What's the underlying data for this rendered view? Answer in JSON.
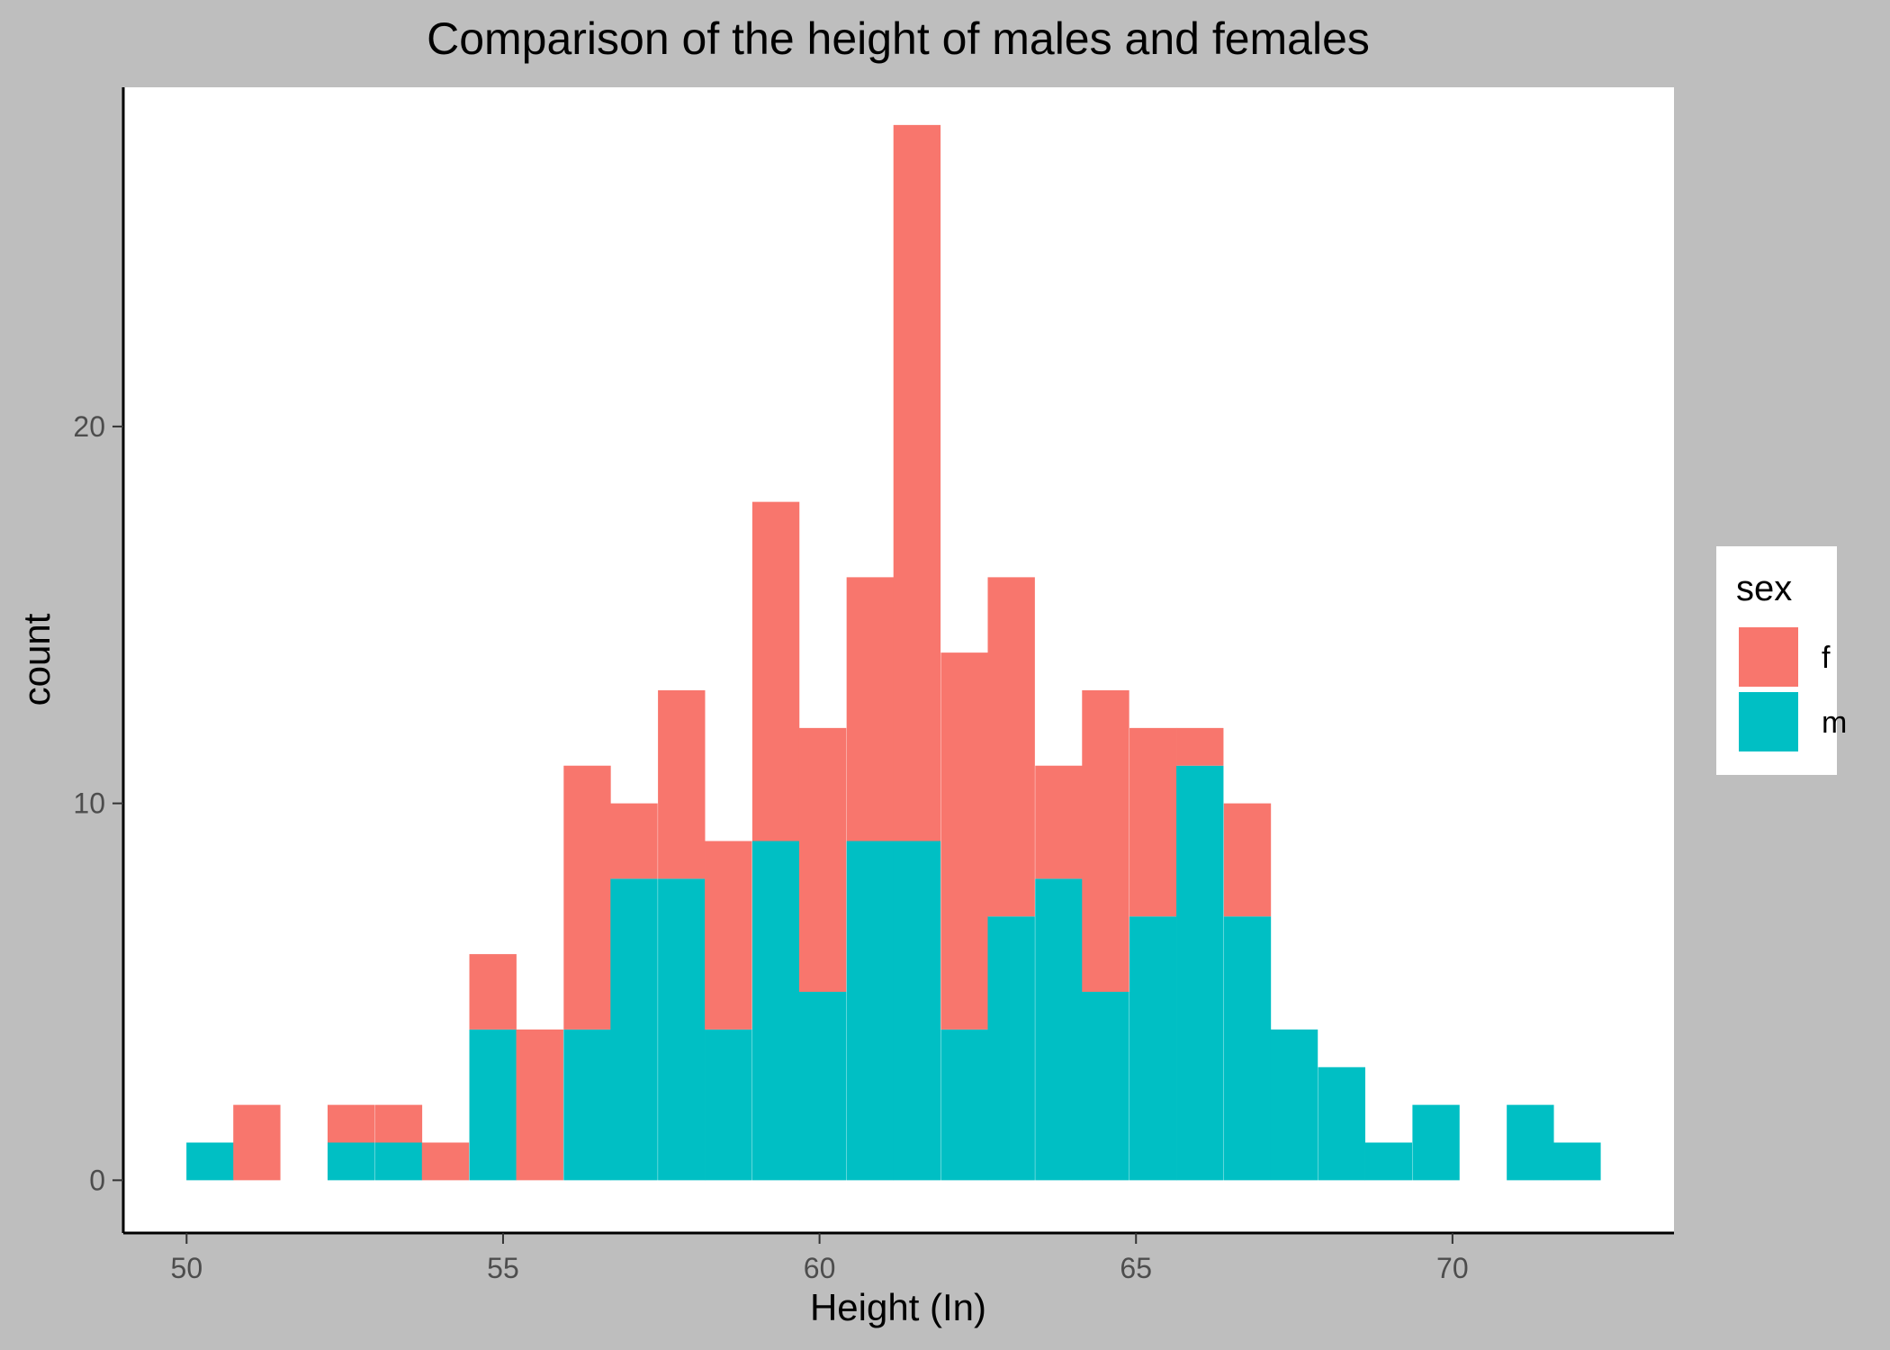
{
  "chart_data": {
    "type": "bar",
    "subtype": "stacked-histogram",
    "title": "Comparison of the height of males and females",
    "xlabel": "Height (In)",
    "ylabel": "count",
    "xlim": [
      49,
      73.5
    ],
    "ylim": [
      -1.4,
      29
    ],
    "x_ticks": [
      50,
      55,
      60,
      65,
      70
    ],
    "y_ticks": [
      0,
      10,
      20
    ],
    "grid": false,
    "legend_title": "sex",
    "legend_position": "right",
    "bin_width": 0.7447,
    "bins": [
      50.37,
      51.11,
      51.86,
      52.6,
      53.35,
      54.09,
      54.84,
      55.58,
      56.33,
      57.07,
      57.82,
      58.56,
      59.31,
      60.05,
      60.8,
      61.54,
      62.29,
      63.03,
      63.78,
      64.52,
      65.27,
      66.01,
      66.76,
      67.5,
      68.25,
      68.99,
      69.74,
      70.48,
      71.23,
      71.97
    ],
    "series": [
      {
        "name": "m",
        "color": "#00bfc4",
        "values": [
          1,
          0,
          0,
          1,
          1,
          0,
          4,
          0,
          4,
          8,
          8,
          4,
          9,
          5,
          9,
          9,
          4,
          7,
          8,
          5,
          7,
          11,
          7,
          4,
          3,
          1,
          2,
          0,
          2,
          1
        ]
      },
      {
        "name": "f",
        "color": "#f8766d",
        "values": [
          0,
          2,
          0,
          1,
          1,
          1,
          2,
          4,
          7,
          2,
          5,
          5,
          9,
          7,
          7,
          19,
          10,
          9,
          3,
          8,
          5,
          1,
          3,
          0,
          0,
          0,
          0,
          0,
          0,
          0
        ]
      }
    ]
  }
}
